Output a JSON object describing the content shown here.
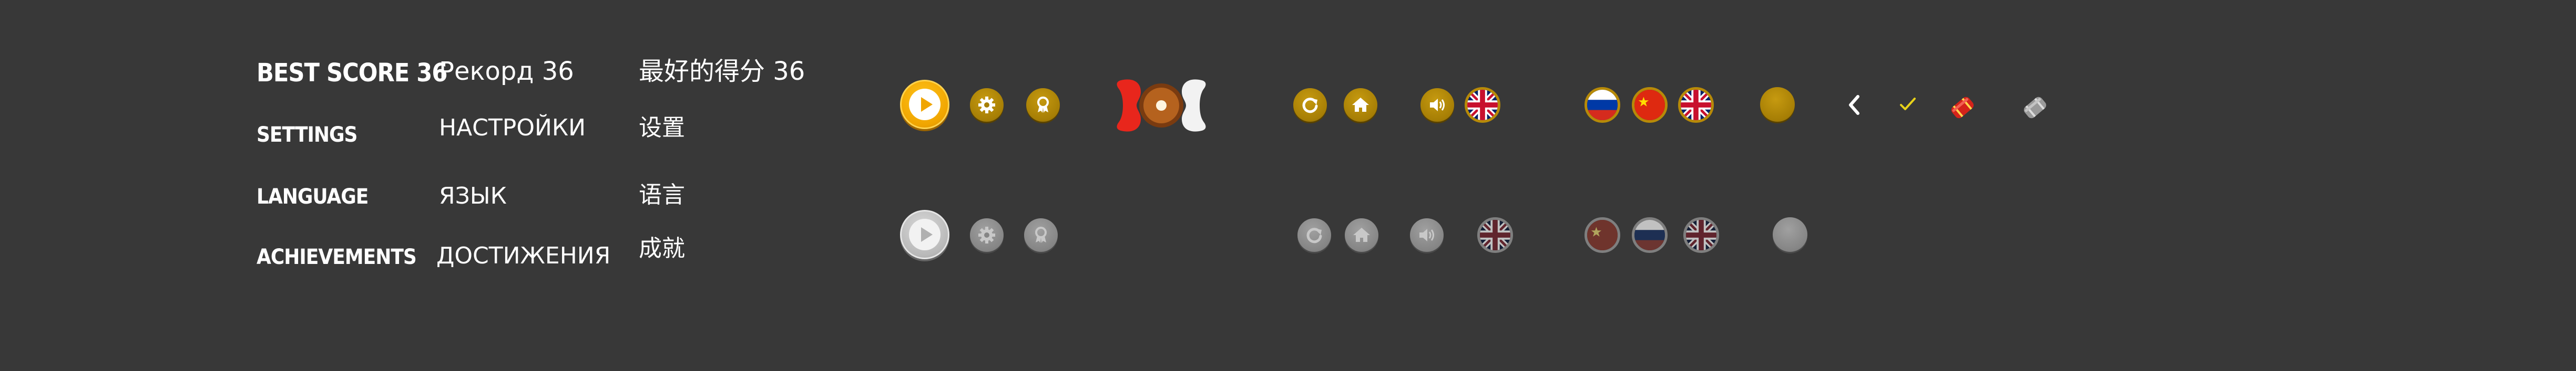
{
  "labels": {
    "en": {
      "best_score": "BEST SCORE 36",
      "settings": "SETTINGS",
      "language": "LANGUAGE",
      "achievements": "ACHIEVEMENTS"
    },
    "ru": {
      "best_score": "Рекорд 36",
      "settings": "НАСТРОЙКИ",
      "language": "ЯЗЫК",
      "achievements": "ДОСТИЖЕНИЯ"
    },
    "zh": {
      "best_score": "最好的得分 36",
      "settings": "设置",
      "language": "语言",
      "achievements": "成就"
    }
  },
  "icons": {
    "active_row": [
      "play-icon",
      "gear-icon",
      "medal-icon",
      "spinner-icon",
      "restart-icon",
      "home-icon",
      "speaker-icon",
      "uk-flag-icon",
      "russia-flag-icon",
      "china-flag-icon",
      "uk-flag-icon",
      "gold-coin-icon",
      "chevron-left-icon",
      "check-icon",
      "red-capsule-icon",
      "grey-capsule-icon"
    ],
    "disabled_row": [
      "play-icon",
      "gear-icon",
      "medal-icon",
      "restart-icon",
      "home-icon",
      "speaker-icon",
      "uk-flag-icon",
      "china-flag-icon",
      "russia-flag-icon",
      "uk-flag-icon",
      "grey-coin-icon"
    ]
  },
  "colors": {
    "background": "#383838",
    "gold": "#a67e05",
    "play_gold": "#f0a500",
    "disabled_grey": "#858585",
    "check_yellow": "#e8d21a",
    "capsule_red": "#d4231a"
  }
}
